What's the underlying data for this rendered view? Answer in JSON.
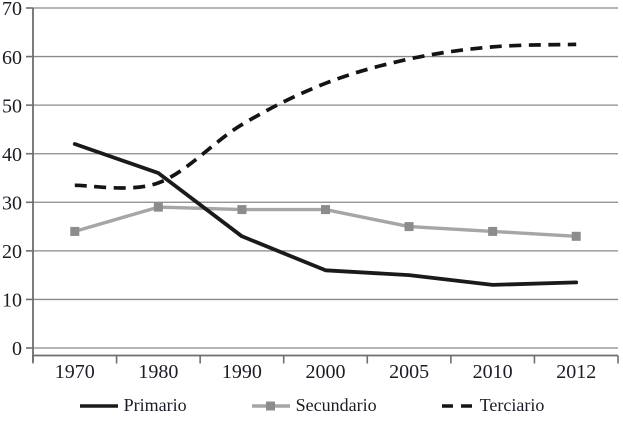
{
  "chart_data": {
    "type": "line",
    "title": "",
    "xlabel": "",
    "ylabel": "",
    "categories": [
      "1970",
      "1980",
      "1990",
      "2000",
      "2005",
      "2010",
      "2012"
    ],
    "series": [
      {
        "name": "Primario",
        "style": "solid black line",
        "values": [
          42,
          36,
          23,
          16,
          15,
          13,
          13.5
        ]
      },
      {
        "name": "Secundario",
        "style": "gray line with square markers",
        "values": [
          24,
          29,
          28.5,
          28.5,
          25,
          24,
          23
        ]
      },
      {
        "name": "Terciario",
        "style": "dashed black smoothed line",
        "values": [
          33.5,
          34,
          46,
          54.5,
          59.5,
          62,
          62.5
        ]
      }
    ],
    "ylim": [
      0,
      70
    ],
    "y_ticks": [
      0,
      10,
      20,
      30,
      40,
      50,
      60,
      70
    ],
    "grid": "horizontal",
    "legend_position": "bottom"
  },
  "colors": {
    "primario": "#1a1a1a",
    "secundario_line": "#a6a6a6",
    "secundario_marker": "#8c8c8c",
    "terciario": "#141414",
    "gridline": "#8a8a8a",
    "axis": "#6e6e6e",
    "text": "#1c1c26",
    "background": "#ffffff"
  }
}
